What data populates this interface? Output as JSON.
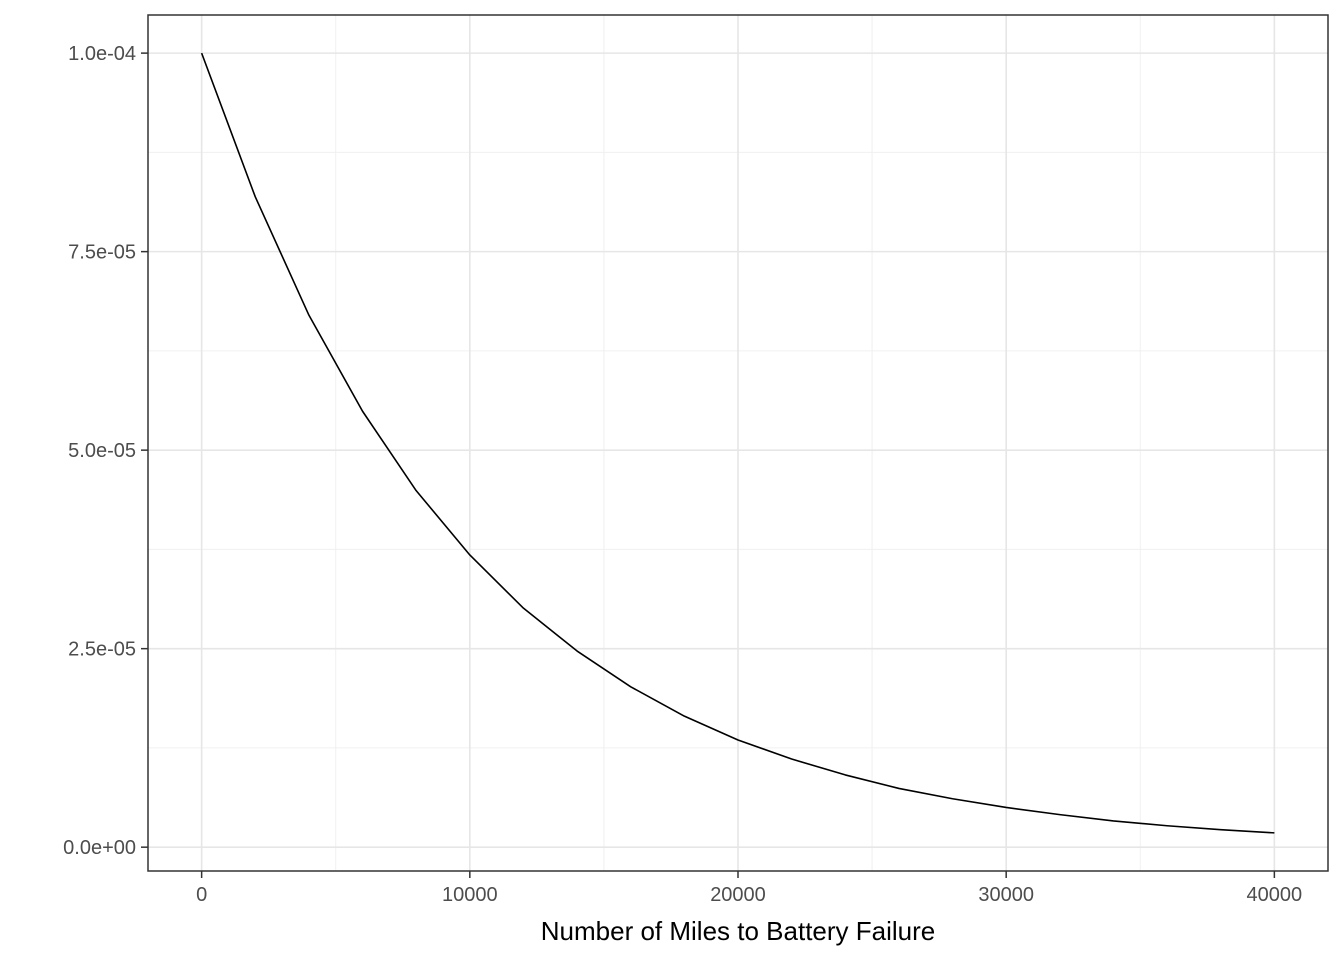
{
  "chart_data": {
    "type": "line",
    "title": "",
    "xlabel": "Number of Miles to Battery Failure",
    "ylabel": "",
    "xlim": [
      -2000,
      42000
    ],
    "ylim": [
      -3e-06,
      0.0001048
    ],
    "x_ticks": [
      0,
      10000,
      20000,
      30000,
      40000
    ],
    "x_tick_labels": [
      "0",
      "10000",
      "20000",
      "30000",
      "40000"
    ],
    "x_minor_ticks": [
      5000,
      15000,
      25000,
      35000
    ],
    "y_ticks": [
      0,
      2.5e-05,
      5e-05,
      7.5e-05,
      0.0001
    ],
    "y_tick_labels": [
      "0.0e+00",
      "2.5e-05",
      "5.0e-05",
      "7.5e-05",
      "1.0e-04"
    ],
    "y_minor_ticks": [
      1.25e-05,
      3.75e-05,
      6.25e-05,
      8.75e-05
    ],
    "grid": true,
    "series": [
      {
        "color": "#000000",
        "x": [
          0,
          2000,
          4000,
          6000,
          8000,
          10000,
          12000,
          14000,
          16000,
          18000,
          20000,
          22000,
          24000,
          26000,
          28000,
          30000,
          32000,
          34000,
          36000,
          38000,
          40000
        ],
        "y": [
          0.0001,
          8.19e-05,
          6.7e-05,
          5.49e-05,
          4.49e-05,
          3.68e-05,
          3.01e-05,
          2.47e-05,
          2.02e-05,
          1.65e-05,
          1.35e-05,
          1.11e-05,
          9.1e-06,
          7.4e-06,
          6.1e-06,
          5e-06,
          4.1e-06,
          3.3e-06,
          2.7e-06,
          2.2e-06,
          1.8e-06
        ]
      }
    ]
  }
}
